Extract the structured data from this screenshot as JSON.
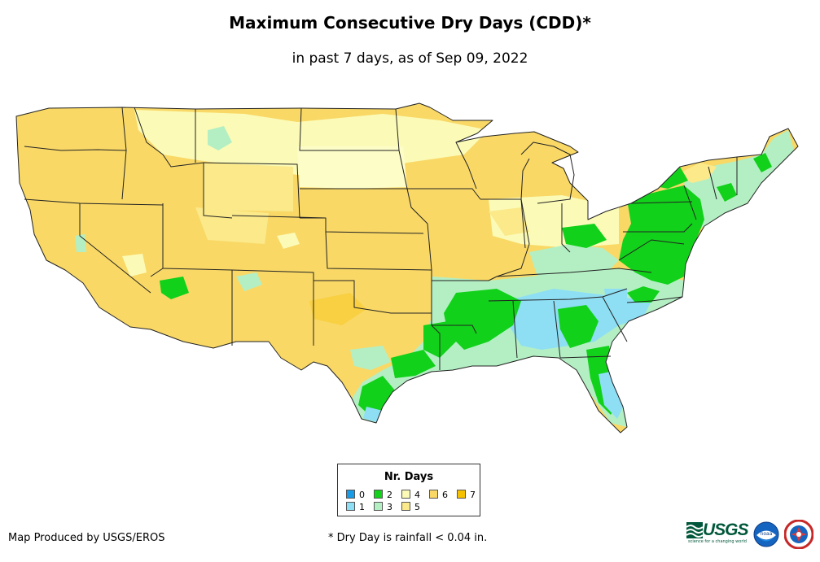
{
  "title": "Maximum Consecutive Dry Days (CDD)*",
  "subtitle": "in past 7 days, as of Sep 09, 2022",
  "legend": {
    "title": "Nr. Days",
    "items": [
      {
        "label": "0",
        "color": "#1a9be6"
      },
      {
        "label": "1",
        "color": "#8edff4"
      },
      {
        "label": "2",
        "color": "#11d11a"
      },
      {
        "label": "3",
        "color": "#b4efc4"
      },
      {
        "label": "4",
        "color": "#fbfbb7"
      },
      {
        "label": "5",
        "color": "#fbe98a"
      },
      {
        "label": "6",
        "color": "#f9d866"
      },
      {
        "label": "7",
        "color": "#f6c200"
      }
    ]
  },
  "credit": "Map Produced by USGS/EROS",
  "footnote": "* Dry Day is rainfall < 0.04 in.",
  "logos": {
    "usgs_word": "USGS",
    "usgs_tagline": "science for a changing world",
    "noaa_text": "noaa"
  },
  "colors": {
    "state_border": "#222222"
  }
}
